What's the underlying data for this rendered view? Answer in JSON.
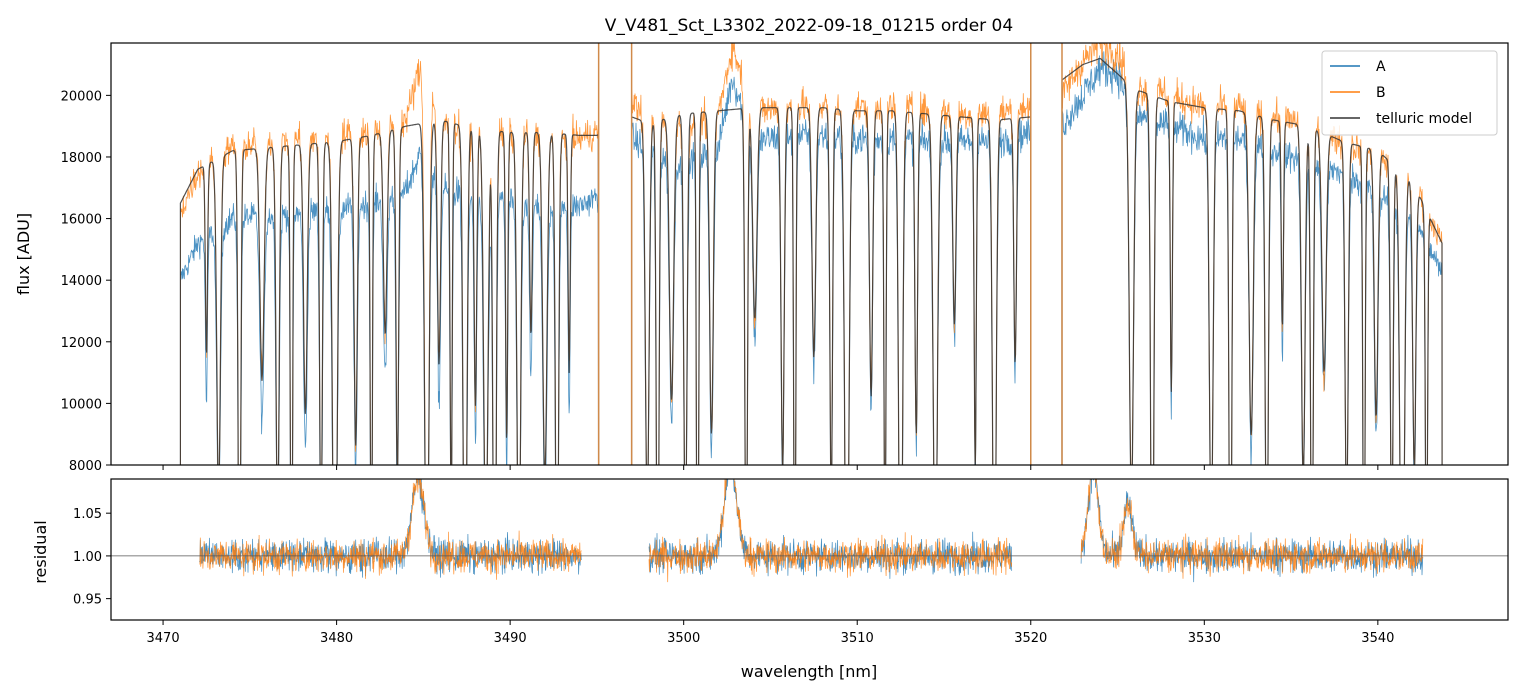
{
  "chart_data": [
    {
      "type": "line",
      "panel": "main",
      "title": "V_V481_Sct_L3302_2022-09-18_01215  order 04",
      "xlabel": "",
      "ylabel": "flux [ADU]",
      "xlim": [
        3467,
        3547.5
      ],
      "ylim": [
        8000,
        21700
      ],
      "yticks": [
        8000,
        10000,
        12000,
        14000,
        16000,
        18000,
        20000
      ],
      "xticks": [
        3470,
        3480,
        3490,
        3500,
        3510,
        3520,
        3530,
        3540
      ],
      "legend_position": "top-right",
      "segments": [
        [
          3471.0,
          3495.1
        ],
        [
          3497.0,
          3520.0
        ],
        [
          3521.8,
          3543.7
        ]
      ],
      "series": [
        {
          "name": "A",
          "color": "#1f77b4",
          "x": [
            3471,
            3472,
            3474,
            3476,
            3478,
            3480,
            3482,
            3484,
            3485,
            3486,
            3488,
            3490,
            3492,
            3494,
            3495,
            3497,
            3498,
            3500,
            3502,
            3502.8,
            3504,
            3506,
            3508,
            3510,
            3512,
            3514,
            3516,
            3518,
            3520,
            3521.8,
            3523,
            3524,
            3525,
            3526,
            3528,
            3530,
            3532,
            3534,
            3536,
            3538,
            3540,
            3542,
            3543.7
          ],
          "y": [
            14000,
            15200,
            16000,
            16100,
            16200,
            16300,
            16500,
            16900,
            18400,
            17000,
            16700,
            16600,
            16500,
            16400,
            16700,
            18600,
            18200,
            17800,
            18300,
            20600,
            18500,
            18700,
            18700,
            18600,
            18600,
            18500,
            18500,
            18500,
            18800,
            19000,
            20000,
            20900,
            20700,
            19400,
            19000,
            18600,
            18600,
            18200,
            17800,
            17500,
            16800,
            16200,
            14200
          ]
        },
        {
          "name": "B",
          "color": "#ff7f0e",
          "x": [
            3471,
            3472,
            3474,
            3476,
            3478,
            3480,
            3482,
            3484,
            3485,
            3486,
            3488,
            3490,
            3492,
            3494,
            3495,
            3497,
            3498,
            3500,
            3502,
            3502.8,
            3504,
            3506,
            3508,
            3510,
            3512,
            3514,
            3516,
            3518,
            3520,
            3521.8,
            3523,
            3524,
            3525,
            3526,
            3528,
            3530,
            3532,
            3534,
            3536,
            3538,
            3540,
            3542,
            3543.7
          ],
          "y": [
            16200,
            17500,
            18300,
            18500,
            18600,
            18700,
            18800,
            19200,
            21300,
            19100,
            18800,
            18700,
            18700,
            18600,
            18800,
            19800,
            19200,
            19000,
            19400,
            21600,
            19500,
            19600,
            19700,
            19600,
            19600,
            19500,
            19400,
            19400,
            19700,
            20000,
            21100,
            21700,
            21400,
            20300,
            20000,
            19600,
            19600,
            19300,
            19000,
            18500,
            18000,
            17300,
            15200
          ]
        },
        {
          "name": "telluric model",
          "color": "#333333",
          "x": [
            3471,
            3472,
            3474,
            3476,
            3478,
            3480,
            3482,
            3484,
            3486,
            3488,
            3490,
            3492,
            3494,
            3495,
            3497,
            3498,
            3500,
            3502,
            3504,
            3506,
            3508,
            3510,
            3512,
            3514,
            3516,
            3518,
            3520,
            3521.8,
            3523,
            3524,
            3526,
            3528,
            3530,
            3532,
            3534,
            3536,
            3538,
            3540,
            3542,
            3543.7
          ],
          "y": [
            16500,
            17600,
            18200,
            18300,
            18400,
            18500,
            18700,
            19000,
            19200,
            18900,
            18800,
            18800,
            18700,
            18700,
            19300,
            19100,
            19400,
            19500,
            19600,
            19600,
            19600,
            19500,
            19500,
            19400,
            19300,
            19200,
            19300,
            20500,
            21000,
            21200,
            20200,
            19800,
            19600,
            19500,
            19200,
            19000,
            18500,
            18200,
            17200,
            15200
          ]
        }
      ],
      "absorption_lines": [
        3472.5,
        3473.2,
        3474.4,
        3475.7,
        3476.6,
        3477.4,
        3478.2,
        3479.1,
        3479.9,
        3481.1,
        3482.0,
        3482.8,
        3483.5,
        3485.2,
        3485.9,
        3486.6,
        3487.4,
        3488.0,
        3488.6,
        3489.1,
        3489.8,
        3490.5,
        3491.2,
        3492.0,
        3492.7,
        3493.4,
        3497.9,
        3498.5,
        3499.3,
        3500.1,
        3500.8,
        3501.6,
        3503.6,
        3504.1,
        3505.7,
        3506.4,
        3507.5,
        3508.5,
        3509.4,
        3510.8,
        3511.6,
        3512.5,
        3513.4,
        3514.5,
        3515.6,
        3516.8,
        3517.9,
        3519.1,
        3525.8,
        3527.0,
        3528.1,
        3530.4,
        3531.5,
        3532.7,
        3533.6,
        3534.5,
        3535.7,
        3536.2,
        3536.9,
        3538.2,
        3539.2,
        3539.9,
        3540.8,
        3541.4,
        3542.1,
        3542.8
      ]
    },
    {
      "type": "line",
      "panel": "residual",
      "xlabel": "wavelength [nm]",
      "ylabel": "residual",
      "xlim": [
        3467,
        3547.5
      ],
      "ylim": [
        0.925,
        1.09
      ],
      "yticks": [
        0.95,
        1.0,
        1.05
      ],
      "ytick_labels": [
        "0.95",
        "1.00",
        "1.05"
      ],
      "xticks": [
        3470,
        3480,
        3490,
        3500,
        3510,
        3520,
        3530,
        3540
      ],
      "reference_line": 1.0,
      "segments": [
        [
          3472.1,
          3494.1
        ],
        [
          3498.0,
          3518.9
        ],
        [
          3522.9,
          3542.6
        ]
      ],
      "noise_amplitude": 0.035,
      "bumps": [
        {
          "center": 3484.7,
          "height": 0.09,
          "width": 0.35
        },
        {
          "center": 3502.7,
          "height": 0.11,
          "width": 0.35
        },
        {
          "center": 3523.6,
          "height": 0.1,
          "width": 0.3
        },
        {
          "center": 3525.6,
          "height": 0.06,
          "width": 0.25
        }
      ],
      "series": [
        {
          "name": "A",
          "color": "#1f77b4"
        },
        {
          "name": "B",
          "color": "#ff7f0e"
        }
      ]
    }
  ],
  "legend": {
    "items": [
      {
        "label": "A",
        "color": "#1f77b4"
      },
      {
        "label": "B",
        "color": "#ff7f0e"
      },
      {
        "label": "telluric model",
        "color": "#333333"
      }
    ]
  }
}
